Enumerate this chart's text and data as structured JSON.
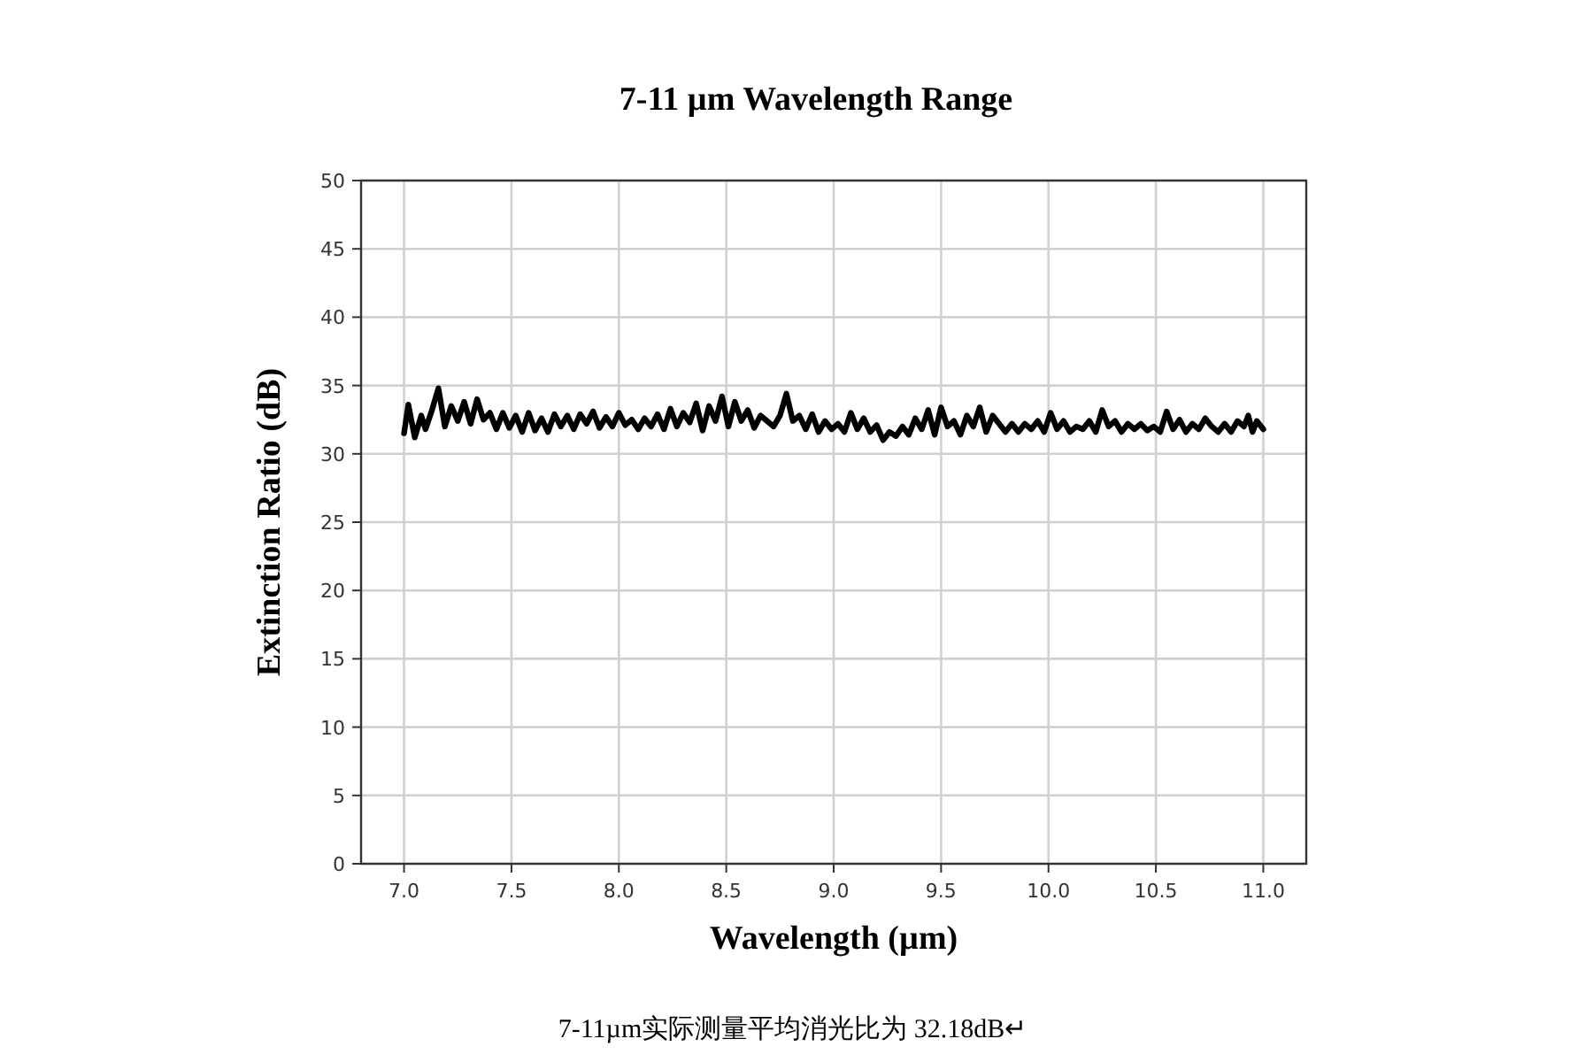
{
  "chart_data": {
    "type": "line",
    "title": "7-11 µm Wavelength Range",
    "xlabel": "Wavelength (µm)",
    "ylabel": "Extinction Ratio (dB)",
    "annotations": [
      "7-11µm实际测量平均消光比为 32.18dB↵"
    ],
    "xlim": [
      6.8,
      11.2
    ],
    "xticks": [
      {
        "value": 7,
        "label": "7.0"
      },
      {
        "value": 7.5,
        "label": "7.5"
      },
      {
        "value": 8,
        "label": "8.0"
      },
      {
        "value": 8.5,
        "label": "8.5"
      },
      {
        "value": 9,
        "label": "9.0"
      },
      {
        "value": 9.5,
        "label": "9.5"
      },
      {
        "value": 10,
        "label": "10.0"
      },
      {
        "value": 10.5,
        "label": "10.5"
      },
      {
        "value": 11,
        "label": "11.0"
      }
    ],
    "ylim": [
      0,
      50
    ],
    "yticks": [
      0,
      5,
      10,
      15,
      20,
      25,
      30,
      35,
      40,
      45,
      50
    ],
    "grid": true,
    "marker": "none",
    "line_style": "solid",
    "series": [
      {
        "color": "#000000",
        "x": [
          7.0,
          7.02,
          7.05,
          7.08,
          7.1,
          7.13,
          7.16,
          7.19,
          7.22,
          7.25,
          7.28,
          7.31,
          7.34,
          7.37,
          7.4,
          7.43,
          7.46,
          7.49,
          7.52,
          7.55,
          7.58,
          7.61,
          7.64,
          7.67,
          7.7,
          7.73,
          7.76,
          7.79,
          7.82,
          7.85,
          7.88,
          7.91,
          7.94,
          7.97,
          8.0,
          8.03,
          8.06,
          8.09,
          8.12,
          8.15,
          8.18,
          8.21,
          8.24,
          8.27,
          8.3,
          8.33,
          8.36,
          8.39,
          8.42,
          8.45,
          8.48,
          8.51,
          8.54,
          8.57,
          8.6,
          8.63,
          8.66,
          8.69,
          8.72,
          8.75,
          8.78,
          8.81,
          8.84,
          8.87,
          8.9,
          8.93,
          8.96,
          8.99,
          9.02,
          9.05,
          9.08,
          9.11,
          9.14,
          9.17,
          9.2,
          9.23,
          9.26,
          9.29,
          9.32,
          9.35,
          9.38,
          9.41,
          9.44,
          9.47,
          9.5,
          9.53,
          9.56,
          9.59,
          9.62,
          9.65,
          9.68,
          9.71,
          9.74,
          9.77,
          9.8,
          9.83,
          9.86,
          9.89,
          9.92,
          9.95,
          9.98,
          10.01,
          10.04,
          10.07,
          10.1,
          10.13,
          10.16,
          10.19,
          10.22,
          10.25,
          10.28,
          10.31,
          10.34,
          10.37,
          10.4,
          10.43,
          10.46,
          10.49,
          10.52,
          10.55,
          10.58,
          10.61,
          10.64,
          10.67,
          10.7,
          10.73,
          10.76,
          10.79,
          10.82,
          10.85,
          10.88,
          10.91,
          10.93,
          10.95,
          10.97,
          11.0
        ],
        "values": [
          31.5,
          33.6,
          31.2,
          32.8,
          31.8,
          33.2,
          34.8,
          32.0,
          33.5,
          32.4,
          33.8,
          32.2,
          34.0,
          32.5,
          33.0,
          31.8,
          33.0,
          31.9,
          32.8,
          31.6,
          33.0,
          31.7,
          32.6,
          31.6,
          32.9,
          32.0,
          32.8,
          31.8,
          32.9,
          32.2,
          33.1,
          31.9,
          32.7,
          32.0,
          33.0,
          32.1,
          32.5,
          31.8,
          32.6,
          32.0,
          32.9,
          31.8,
          33.3,
          32.0,
          33.0,
          32.3,
          33.7,
          31.7,
          33.5,
          32.4,
          34.2,
          32.0,
          33.8,
          32.4,
          33.2,
          31.9,
          32.8,
          32.4,
          32.0,
          32.8,
          34.4,
          32.4,
          32.8,
          31.8,
          32.9,
          31.6,
          32.4,
          31.8,
          32.2,
          31.6,
          33.0,
          31.8,
          32.6,
          31.6,
          32.1,
          31.0,
          31.6,
          31.3,
          32.0,
          31.4,
          32.6,
          31.8,
          33.2,
          31.4,
          33.4,
          32.0,
          32.4,
          31.4,
          32.8,
          32.0,
          33.4,
          31.6,
          32.8,
          32.2,
          31.6,
          32.2,
          31.6,
          32.2,
          31.8,
          32.4,
          31.6,
          33.0,
          31.8,
          32.4,
          31.6,
          32.0,
          31.8,
          32.4,
          31.6,
          33.2,
          32.0,
          32.4,
          31.6,
          32.2,
          31.8,
          32.2,
          31.7,
          32.0,
          31.6,
          33.1,
          31.8,
          32.5,
          31.6,
          32.2,
          31.8,
          32.6,
          32.0,
          31.6,
          32.2,
          31.6,
          32.4,
          32.0,
          32.8,
          31.6,
          32.4,
          31.8
        ]
      }
    ]
  }
}
